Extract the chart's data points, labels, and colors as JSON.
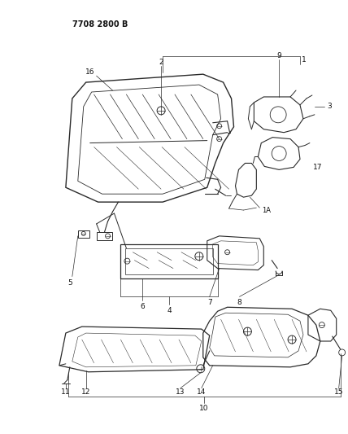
{
  "title_code": "7708 2800 B",
  "bg_color": "#ffffff",
  "lc": "#2a2a2a",
  "figsize": [
    4.28,
    5.33
  ],
  "dpi": 100
}
